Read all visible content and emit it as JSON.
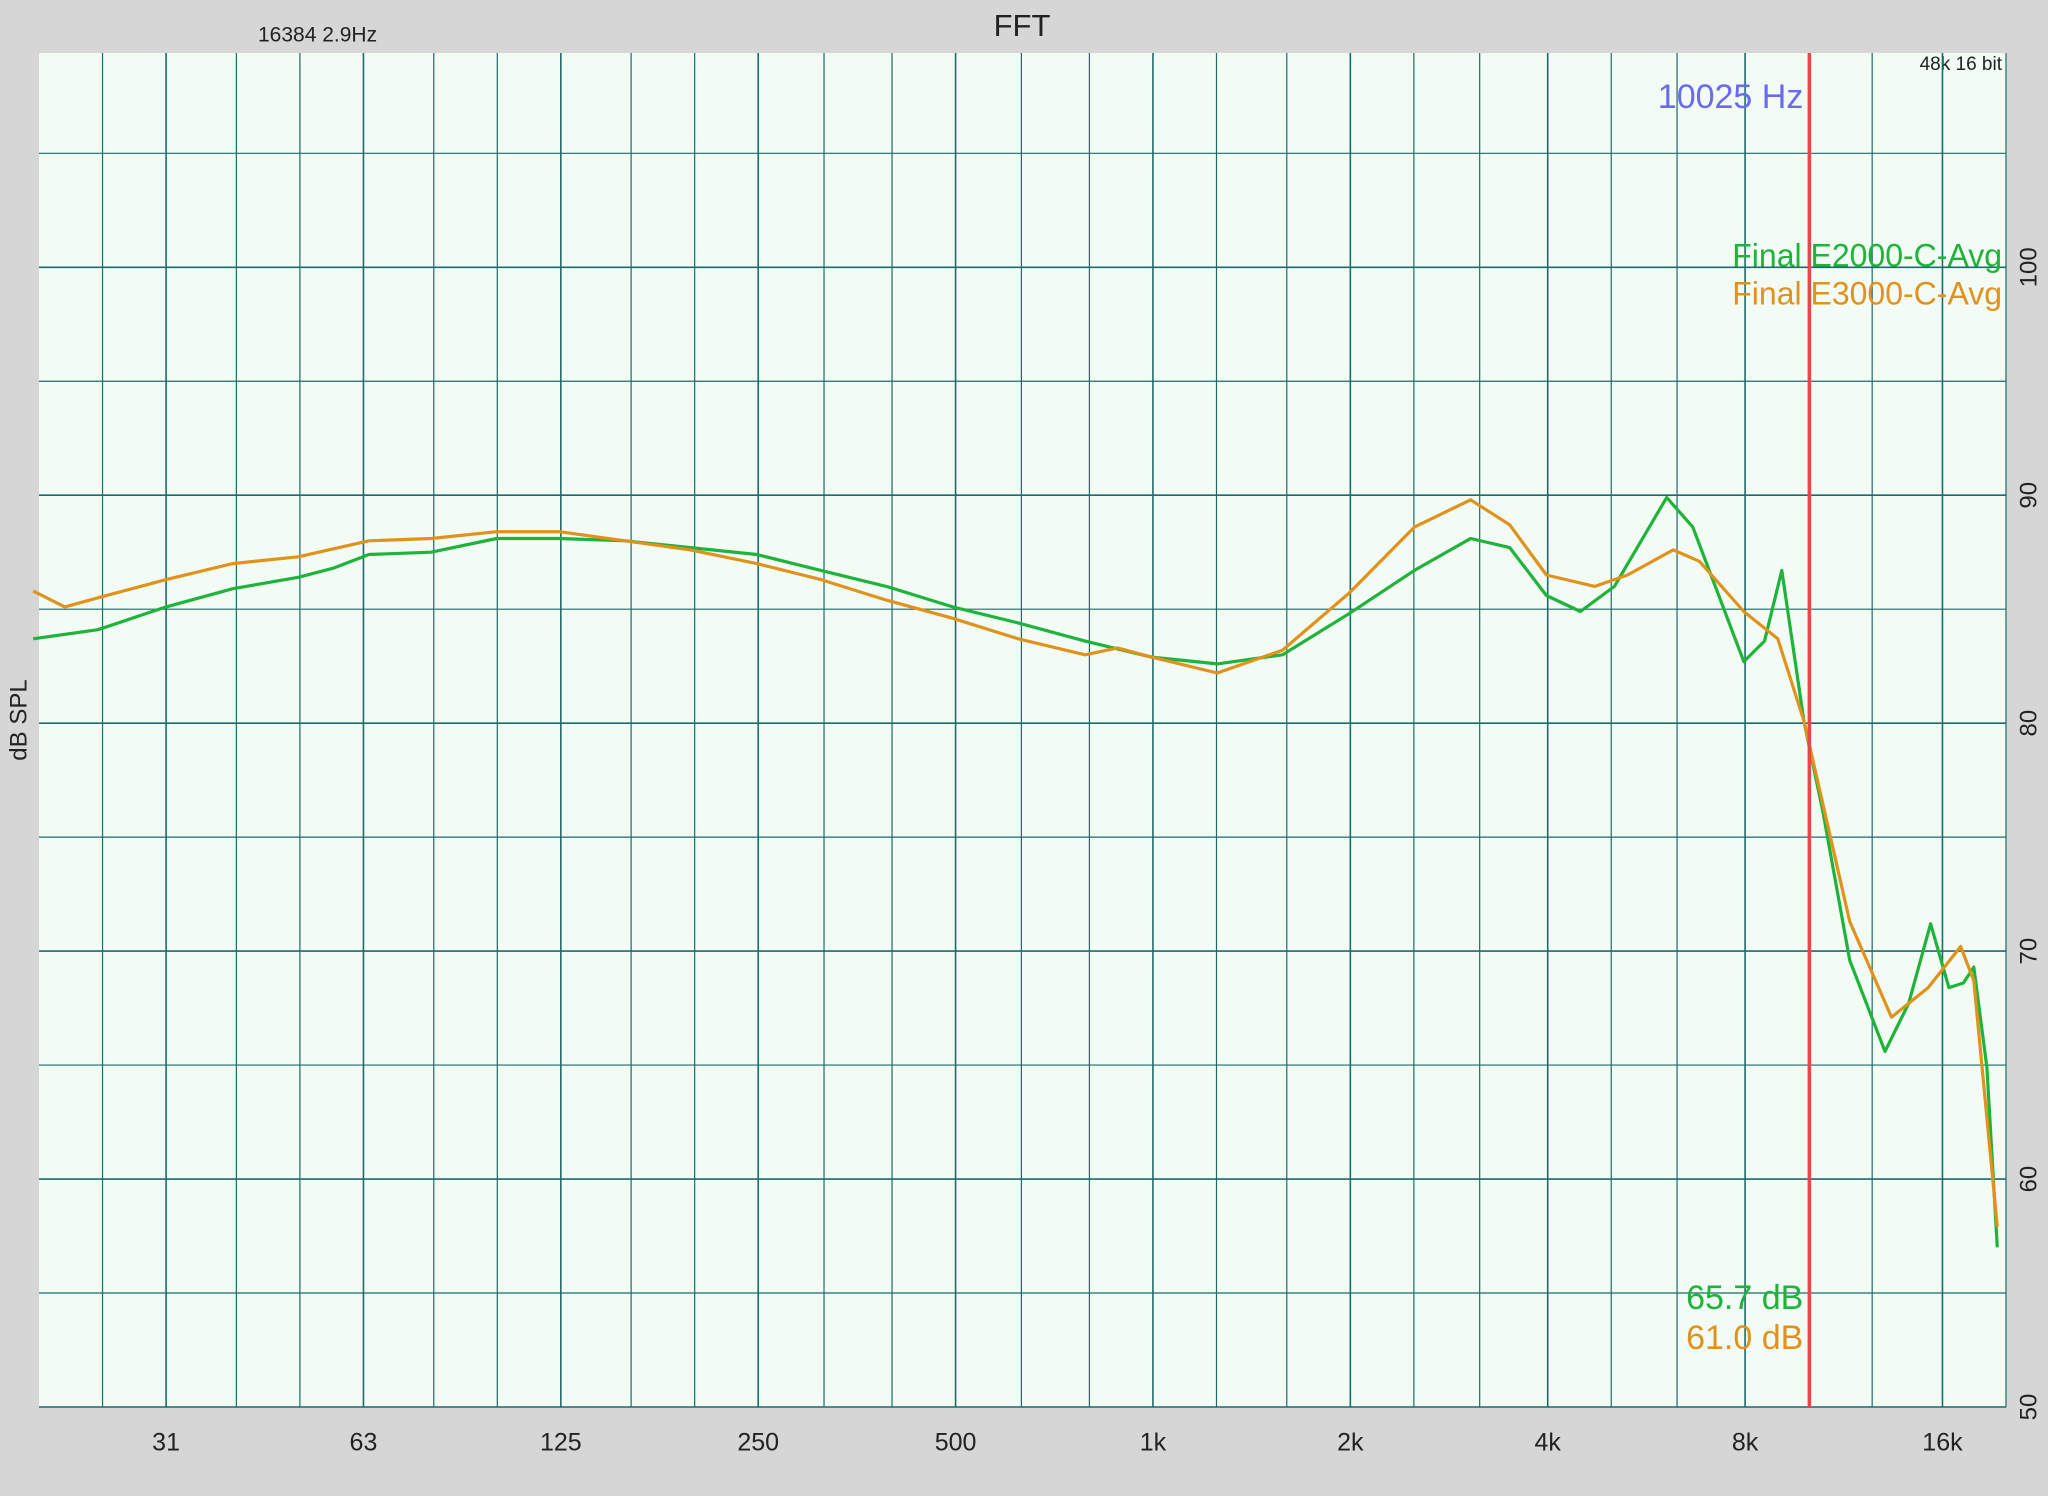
{
  "chart_data": {
    "type": "line",
    "title": "FFT",
    "info_left": "16384  2.9Hz",
    "info_right": "48k 16 bit",
    "ylabel": "dB SPL",
    "xscale": "log",
    "xlim": [
      20,
      20000
    ],
    "ylim": [
      50,
      109.4
    ],
    "grid": true,
    "xticks": [
      {
        "value": 31.25,
        "label": "31"
      },
      {
        "value": 62.5,
        "label": "63"
      },
      125,
      250,
      500,
      {
        "value": 1000,
        "label": "1k"
      },
      {
        "value": 2000,
        "label": "2k"
      },
      {
        "value": 4000,
        "label": "4k"
      },
      {
        "value": 8000,
        "label": "8k"
      },
      {
        "value": 16000,
        "label": "16k"
      }
    ],
    "minor_xticks": [
      25,
      40,
      50,
      80,
      100,
      160,
      200,
      315,
      400,
      630,
      800,
      1250,
      1600,
      2500,
      3150,
      5000,
      6300,
      10000,
      12500,
      20000
    ],
    "yticks": [
      50,
      60,
      70,
      80,
      90,
      100
    ],
    "minor_yticks": [
      55,
      65,
      75,
      85,
      95,
      105
    ],
    "legend": "upper right",
    "cursor": {
      "value": 10025,
      "label": "10025 Hz",
      "color": "#e24a4a",
      "label_color": "#6a6af0",
      "values": [
        65.7,
        61.0
      ],
      "value_labels": [
        "65.7 dB",
        "61.0 dB"
      ]
    },
    "series": [
      {
        "name": "Final E2000-C-Avg",
        "color": "#1fb33b",
        "x": [
          19.6,
          24.6,
          31.25,
          39.5,
          49.7,
          56.2,
          63.7,
          79.3,
          99.8,
          124.4,
          156.6,
          197,
          248.8,
          311.6,
          392,
          495,
          623,
          788,
          995,
          1253,
          1576,
          1991,
          2505,
          3051,
          3500,
          3981,
          4487,
          5056,
          6075,
          6657,
          7963,
          8564,
          9100,
          9835,
          10532,
          11550,
          13078,
          14204,
          15350,
          16368,
          17220,
          17860,
          18700,
          19400
        ],
        "values": [
          83.7,
          84.1,
          85.1,
          85.9,
          86.4,
          86.8,
          87.4,
          87.5,
          88.1,
          88.1,
          88.0,
          87.7,
          87.4,
          86.7,
          86.0,
          85.1,
          84.4,
          83.6,
          82.9,
          82.6,
          83.0,
          84.8,
          86.7,
          88.1,
          87.7,
          85.6,
          84.9,
          86.0,
          89.9,
          88.6,
          82.7,
          83.6,
          86.7,
          80.1,
          76.0,
          69.6,
          65.6,
          67.7,
          71.2,
          68.4,
          68.6,
          69.3,
          64.9,
          57.0
        ]
      },
      {
        "name": "Final E3000-C-Avg",
        "color": "#e0921c",
        "x": [
          19.6,
          21.9,
          24.6,
          31.25,
          39.5,
          49.7,
          63.7,
          79.3,
          99.8,
          124.4,
          156.6,
          197,
          248.8,
          311.6,
          392,
          495,
          623,
          788,
          883,
          995,
          1253,
          1576,
          1991,
          2505,
          3051,
          3500,
          3981,
          4719,
          5294,
          6216,
          6813,
          7963,
          8973,
          9835,
          11550,
          13380,
          15220,
          17060,
          17860,
          19400
        ],
        "values": [
          85.8,
          85.1,
          85.5,
          86.3,
          87.0,
          87.3,
          88.0,
          88.1,
          88.4,
          88.4,
          88.0,
          87.6,
          87.0,
          86.3,
          85.4,
          84.6,
          83.7,
          83.0,
          83.3,
          82.9,
          82.2,
          83.2,
          85.7,
          88.6,
          89.8,
          88.7,
          86.5,
          86.0,
          86.5,
          87.6,
          87.1,
          84.9,
          83.7,
          80.1,
          71.3,
          67.1,
          68.4,
          70.2,
          68.7,
          57.9
        ]
      }
    ]
  }
}
